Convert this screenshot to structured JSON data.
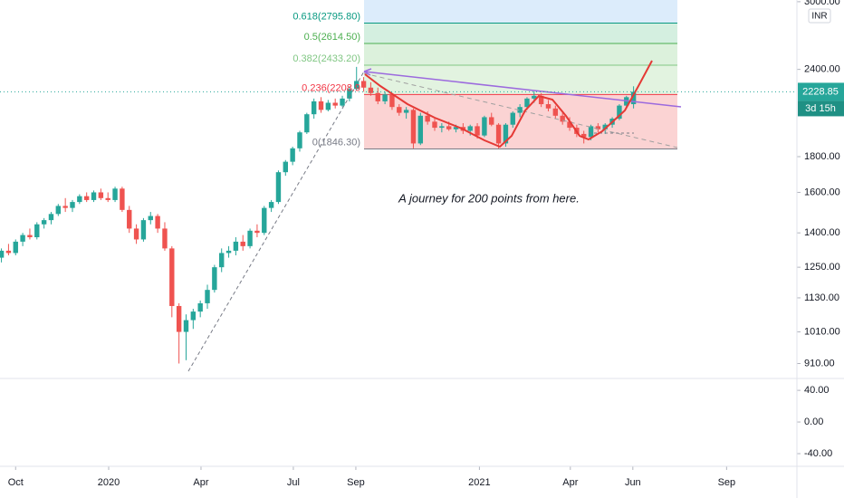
{
  "chart_data": [
    {
      "type": "candlestick",
      "x": [
        -2,
        -1,
        0,
        1,
        2,
        3,
        4,
        5,
        6,
        7,
        8,
        9,
        10,
        11,
        12,
        13,
        14,
        15,
        16,
        17,
        18,
        19,
        20,
        21,
        22,
        23,
        24,
        25,
        26,
        27,
        28,
        29,
        30,
        31,
        32,
        33,
        34,
        35,
        36,
        37,
        38,
        39,
        40,
        41,
        42,
        43,
        44,
        45,
        46,
        47,
        48,
        49,
        50,
        51,
        52,
        53,
        54,
        55,
        56,
        57,
        58,
        59,
        60,
        61,
        62,
        63,
        64,
        65,
        66,
        67,
        68,
        69,
        70,
        71,
        72,
        73,
        74,
        75,
        76,
        77,
        78,
        79,
        80,
        81,
        82,
        83,
        84,
        85,
        86,
        87
      ],
      "open": [
        1290,
        1320,
        1310,
        1360,
        1390,
        1380,
        1440,
        1460,
        1490,
        1530,
        1520,
        1550,
        1580,
        1560,
        1600,
        1570,
        1560,
        1620,
        1510,
        1420,
        1370,
        1460,
        1480,
        1420,
        1330,
        1100,
        1010,
        1050,
        1080,
        1110,
        1160,
        1250,
        1310,
        1320,
        1360,
        1340,
        1410,
        1400,
        1520,
        1550,
        1710,
        1770,
        1850,
        1950,
        2070,
        2160,
        2100,
        2150,
        2130,
        2180,
        2250,
        2310,
        2260,
        2220,
        2160,
        2210,
        2120,
        2080,
        2100,
        1880,
        2060,
        2020,
        1980,
        1990,
        1970,
        1985,
        1960,
        1990,
        1930,
        2050,
        2000,
        1880,
        2000,
        2080,
        2120,
        2180,
        2200,
        2140,
        2110,
        2060,
        2020,
        1980,
        1940,
        1920,
        1990,
        1970,
        2000,
        2040,
        2130,
        2140
      ],
      "high": [
        1330,
        1350,
        1370,
        1400,
        1420,
        1450,
        1470,
        1500,
        1540,
        1570,
        1560,
        1590,
        1600,
        1610,
        1620,
        1600,
        1630,
        1630,
        1530,
        1440,
        1470,
        1500,
        1490,
        1450,
        1340,
        1110,
        1070,
        1090,
        1120,
        1180,
        1260,
        1330,
        1340,
        1380,
        1390,
        1420,
        1440,
        1530,
        1560,
        1720,
        1780,
        1860,
        1960,
        2080,
        2180,
        2190,
        2170,
        2180,
        2200,
        2270,
        2420,
        2340,
        2300,
        2260,
        2230,
        2220,
        2140,
        2120,
        2110,
        2080,
        2090,
        2040,
        2010,
        2020,
        2000,
        2010,
        2000,
        2010,
        2060,
        2080,
        2010,
        2010,
        2090,
        2140,
        2190,
        2230,
        2220,
        2170,
        2130,
        2080,
        2050,
        2000,
        1960,
        2000,
        2010,
        2010,
        2050,
        2140,
        2200,
        2270
      ],
      "low": [
        1270,
        1300,
        1300,
        1340,
        1370,
        1370,
        1420,
        1440,
        1480,
        1500,
        1500,
        1540,
        1550,
        1550,
        1560,
        1550,
        1550,
        1500,
        1400,
        1350,
        1360,
        1440,
        1400,
        1320,
        1060,
        910,
        920,
        1020,
        1060,
        1090,
        1150,
        1230,
        1290,
        1300,
        1320,
        1330,
        1380,
        1390,
        1500,
        1540,
        1690,
        1750,
        1830,
        1940,
        2040,
        2080,
        2090,
        2110,
        2120,
        2160,
        2240,
        2230,
        2200,
        2140,
        2140,
        2100,
        2060,
        2040,
        1850,
        1870,
        2000,
        1960,
        1950,
        1960,
        1950,
        1940,
        1930,
        1910,
        1920,
        1990,
        1850,
        1860,
        1980,
        2050,
        2100,
        2150,
        2120,
        2090,
        2040,
        2000,
        1960,
        1920,
        1880,
        1900,
        1950,
        1940,
        1980,
        2030,
        2120,
        2110
      ],
      "close": [
        1320,
        1310,
        1360,
        1390,
        1380,
        1440,
        1460,
        1490,
        1530,
        1520,
        1550,
        1580,
        1560,
        1600,
        1570,
        1560,
        1620,
        1510,
        1420,
        1370,
        1460,
        1480,
        1420,
        1330,
        1100,
        1010,
        1050,
        1080,
        1110,
        1160,
        1250,
        1310,
        1320,
        1360,
        1340,
        1410,
        1400,
        1520,
        1550,
        1710,
        1770,
        1850,
        1950,
        2070,
        2160,
        2100,
        2150,
        2130,
        2180,
        2250,
        2310,
        2260,
        2220,
        2160,
        2210,
        2120,
        2080,
        2100,
        1880,
        2060,
        2020,
        1980,
        1990,
        1970,
        1985,
        1960,
        1990,
        1930,
        2050,
        2000,
        1880,
        2000,
        2080,
        2120,
        2180,
        2200,
        2140,
        2110,
        2060,
        2020,
        1980,
        1940,
        1920,
        1990,
        1970,
        2000,
        2040,
        2130,
        2190,
        2228.85
      ],
      "up_color": "#26a69a",
      "down_color": "#ef5350",
      "log_scale": true,
      "ylim": [
        874,
        3017
      ],
      "yticks": [
        {
          "value": 3000,
          "label": "3000.00"
        },
        {
          "value": 2400,
          "label": "2400.00"
        },
        {
          "value": 1800,
          "label": "1800.00"
        },
        {
          "value": 1600,
          "label": "1600.00"
        },
        {
          "value": 1400,
          "label": "1400.00"
        },
        {
          "value": 1250,
          "label": "1250.00"
        },
        {
          "value": 1130,
          "label": "1130.00"
        },
        {
          "value": 1010,
          "label": "1010.00"
        },
        {
          "value": 910,
          "label": "910.00"
        }
      ],
      "xlim": [
        -2.2,
        110
      ],
      "xticks": [
        {
          "value": 0,
          "label": "Oct"
        },
        {
          "value": 13.1,
          "label": "2020"
        },
        {
          "value": 26.1,
          "label": "Apr"
        },
        {
          "value": 39.1,
          "label": "Jul"
        },
        {
          "value": 47.9,
          "label": "Sep"
        },
        {
          "value": 65.3,
          "label": "2021"
        },
        {
          "value": 78.1,
          "label": "Apr"
        },
        {
          "value": 86.9,
          "label": "Jun"
        },
        {
          "value": 100.1,
          "label": "Sep"
        }
      ],
      "fib_levels": [
        {
          "label": "0.618(2795.80)",
          "value": 2795.8,
          "color": "#089981",
          "fill": "#d1eef0"
        },
        {
          "label": "0.5(2614.50)",
          "value": 2614.5,
          "color": "#4caf50",
          "fill": "#d4efe0"
        },
        {
          "label": "0.382(2433.20)",
          "value": 2433.2,
          "color": "#81c784",
          "fill": "#dcf1dc"
        },
        {
          "label": "0.236(2208.9",
          "value": 2208.9,
          "color": "#f23645",
          "fill": "#e2f3e0"
        },
        {
          "label": "0(1846.30)",
          "value": 1846.3,
          "color": "#787b86",
          "fill": "#fbd3d3"
        }
      ],
      "top_fill": "#dcecfb",
      "annotation": "A journey for 200 points from here.",
      "last_price": 2228.85,
      "countdown": "3d 15h",
      "currency": "INR"
    },
    {
      "type": "line",
      "ylim": [
        -56,
        55
      ],
      "yticks": [
        {
          "value": 40,
          "label": "40.00"
        },
        {
          "value": 0,
          "label": "0.00"
        },
        {
          "value": -40,
          "label": "-40.00"
        }
      ]
    }
  ]
}
